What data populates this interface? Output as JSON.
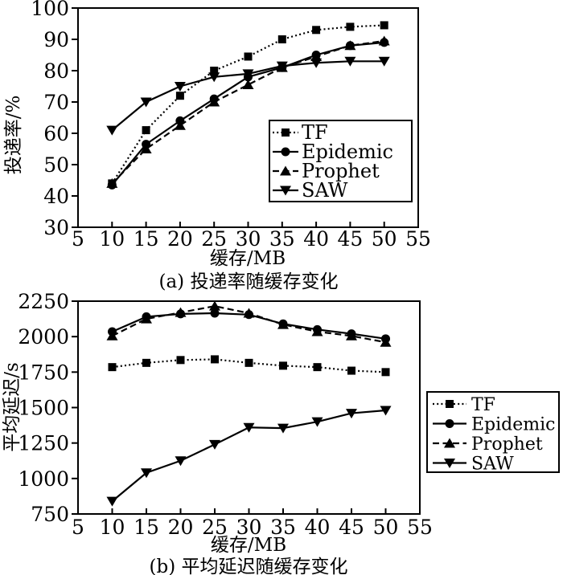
{
  "page": {
    "background": "#ffffff",
    "ink_color": "#000000"
  },
  "chart_data": [
    {
      "id": "a",
      "type": "line",
      "caption": "(a) 投递率随缓存变化",
      "xlabel": "缓存/MB",
      "ylabel": "投递率/%",
      "xlim": [
        5,
        55
      ],
      "ylim": [
        30,
        100
      ],
      "xticks": [
        5,
        10,
        15,
        20,
        25,
        30,
        35,
        40,
        45,
        50,
        55
      ],
      "yticks": [
        30,
        40,
        50,
        60,
        70,
        80,
        90,
        100
      ],
      "grid": false,
      "x": [
        10,
        15,
        20,
        25,
        30,
        35,
        40,
        45,
        50
      ],
      "series": [
        {
          "name": "TF",
          "marker": "square",
          "linestyle": "dotted",
          "values": [
            44,
            61,
            72,
            80,
            84.5,
            90,
            93,
            94,
            94.5
          ]
        },
        {
          "name": "Epidemic",
          "marker": "circle",
          "linestyle": "solid",
          "values": [
            43.5,
            56.5,
            64,
            71,
            78,
            81,
            85,
            88,
            89
          ]
        },
        {
          "name": "Prophet",
          "marker": "triangle-up",
          "linestyle": "dashed",
          "values": [
            44,
            55,
            62.5,
            70,
            75.5,
            81,
            84.5,
            88,
            89.5
          ]
        },
        {
          "name": "SAW",
          "marker": "triangle-down",
          "linestyle": "solid",
          "values": [
            61,
            70,
            75,
            78,
            79,
            81.5,
            82.5,
            83,
            83
          ]
        }
      ],
      "legend": {
        "position": "inside-right",
        "items": [
          "TF",
          "Epidemic",
          "Prophet",
          "SAW"
        ]
      }
    },
    {
      "id": "b",
      "type": "line",
      "caption": "(b) 平均延迟随缓存变化",
      "xlabel": "缓存/MB",
      "ylabel": "平均延迟/s",
      "xlim": [
        5,
        55
      ],
      "ylim": [
        750,
        2250
      ],
      "xticks": [
        5,
        10,
        15,
        20,
        25,
        30,
        35,
        40,
        45,
        50,
        55
      ],
      "yticks": [
        750,
        1000,
        1250,
        1500,
        1750,
        2000,
        2250
      ],
      "grid": false,
      "x": [
        10,
        15,
        20,
        25,
        30,
        35,
        40,
        45,
        50
      ],
      "series": [
        {
          "name": "TF",
          "marker": "square",
          "linestyle": "dotted",
          "values": [
            1785,
            1815,
            1835,
            1840,
            1815,
            1795,
            1785,
            1760,
            1750
          ]
        },
        {
          "name": "Epidemic",
          "marker": "circle",
          "linestyle": "solid",
          "values": [
            2035,
            2140,
            2160,
            2165,
            2155,
            2090,
            2050,
            2020,
            1985
          ]
        },
        {
          "name": "Prophet",
          "marker": "triangle-up",
          "linestyle": "dashed",
          "values": [
            2005,
            2125,
            2170,
            2215,
            2165,
            2085,
            2035,
            2005,
            1960
          ]
        },
        {
          "name": "SAW",
          "marker": "triangle-down",
          "linestyle": "solid",
          "values": [
            840,
            1040,
            1125,
            1240,
            1360,
            1355,
            1400,
            1460,
            1480
          ]
        }
      ],
      "legend": {
        "position": "outside-right",
        "items": [
          "TF",
          "Epidemic",
          "Prophet",
          "SAW"
        ]
      }
    }
  ]
}
